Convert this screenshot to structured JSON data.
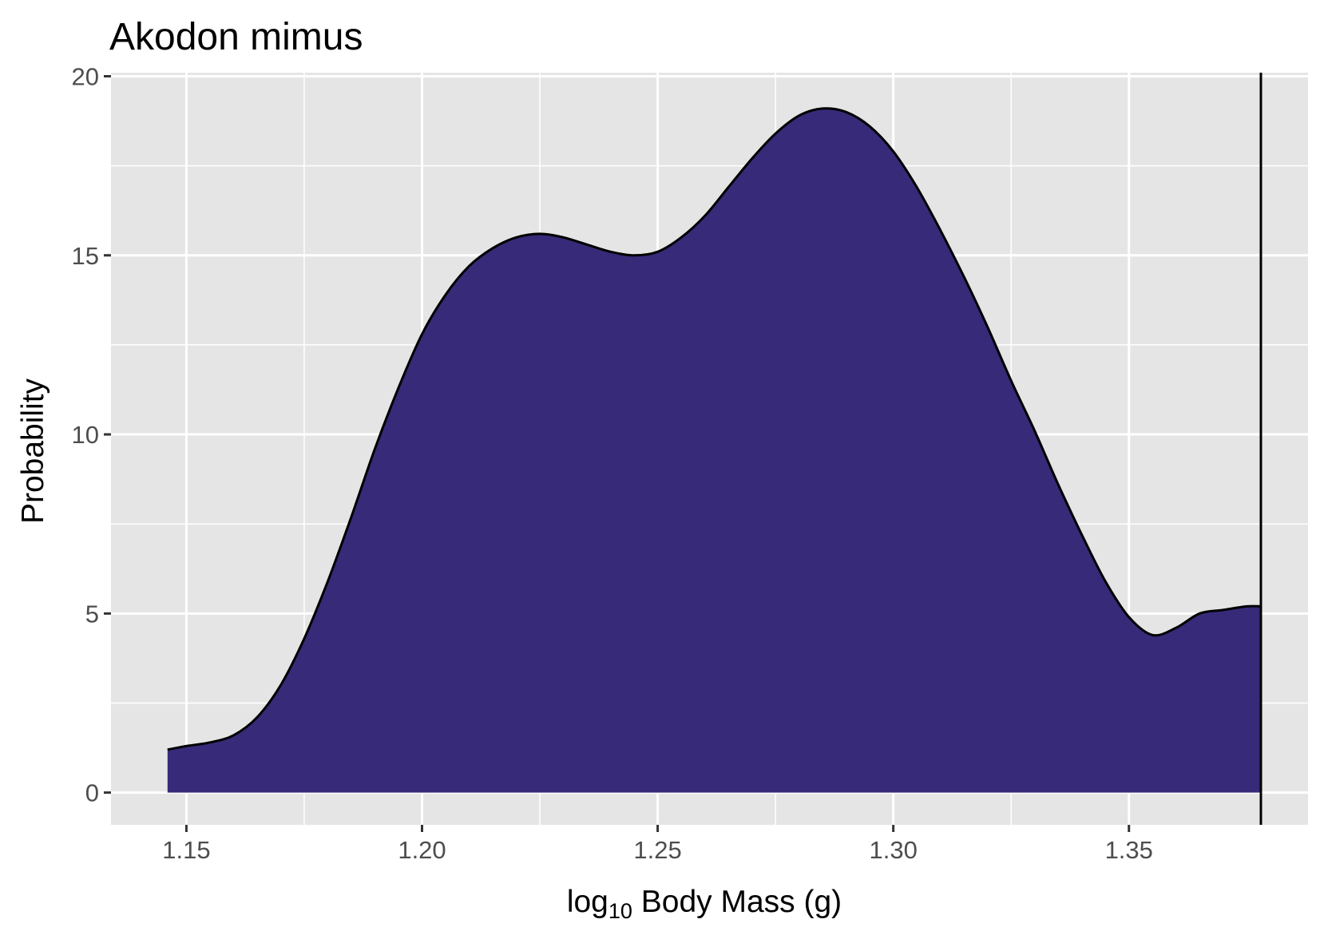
{
  "chart_data": {
    "type": "area",
    "title": "Akodon mimus",
    "xlabel": {
      "prefix": "log",
      "subscript": "10",
      "suffix": " Body Mass (g)"
    },
    "ylabel": "Probability",
    "xlim": [
      1.134,
      1.388
    ],
    "ylim": [
      -0.9,
      20.1
    ],
    "x_ticks": [
      1.15,
      1.2,
      1.25,
      1.3,
      1.35
    ],
    "x_tick_labels": [
      "1.15",
      "1.20",
      "1.25",
      "1.30",
      "1.35"
    ],
    "y_ticks": [
      0,
      5,
      10,
      15,
      20
    ],
    "y_tick_labels": [
      "0",
      "5",
      "10",
      "15",
      "20"
    ],
    "grid": true,
    "fill_color": "#372a78",
    "line_color": "#000000",
    "panel_color": "#e5e5e5",
    "vline_x": 1.378,
    "series": [
      {
        "x": [
          1.146,
          1.15,
          1.155,
          1.16,
          1.165,
          1.17,
          1.175,
          1.18,
          1.185,
          1.19,
          1.195,
          1.2,
          1.205,
          1.21,
          1.215,
          1.22,
          1.225,
          1.23,
          1.235,
          1.24,
          1.245,
          1.25,
          1.255,
          1.26,
          1.265,
          1.27,
          1.275,
          1.28,
          1.285,
          1.29,
          1.295,
          1.3,
          1.305,
          1.31,
          1.315,
          1.32,
          1.325,
          1.33,
          1.335,
          1.34,
          1.345,
          1.35,
          1.355,
          1.36,
          1.365,
          1.37,
          1.375,
          1.378
        ],
        "y": [
          1.2,
          1.3,
          1.4,
          1.6,
          2.1,
          3.0,
          4.3,
          5.9,
          7.7,
          9.6,
          11.3,
          12.8,
          13.9,
          14.7,
          15.2,
          15.5,
          15.6,
          15.5,
          15.3,
          15.1,
          15.0,
          15.1,
          15.5,
          16.1,
          16.9,
          17.7,
          18.4,
          18.9,
          19.1,
          19.0,
          18.6,
          17.9,
          16.9,
          15.7,
          14.4,
          13.0,
          11.5,
          10.1,
          8.6,
          7.2,
          5.9,
          4.9,
          4.4,
          4.6,
          5.0,
          5.1,
          5.2,
          5.2
        ]
      }
    ]
  }
}
